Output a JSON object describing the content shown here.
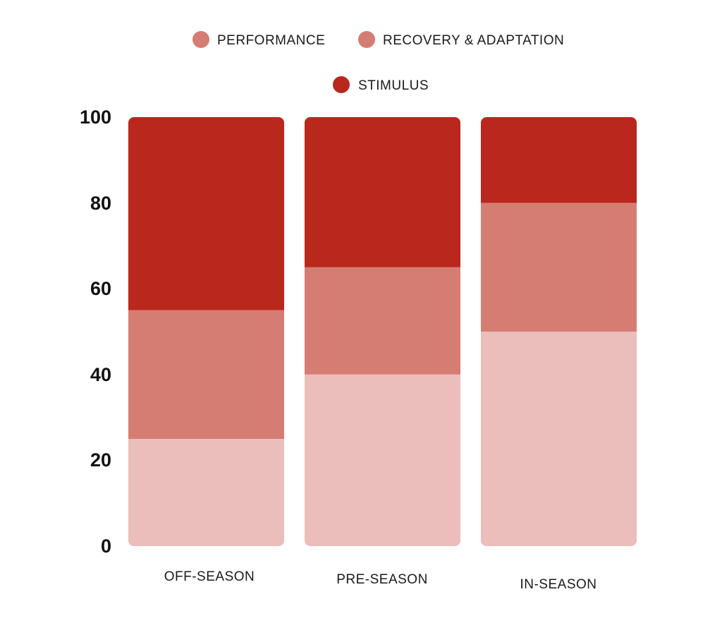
{
  "chart_data": {
    "type": "bar",
    "stacked": true,
    "categories": [
      "OFF-SEASON",
      "PRE-SEASON",
      "IN-SEASON"
    ],
    "series": [
      {
        "name": "PERFORMANCE",
        "values": [
          25,
          40,
          50
        ],
        "color": "#ebbebb"
      },
      {
        "name": "RECOVERY & ADAPTATION",
        "values": [
          30,
          25,
          30
        ],
        "color": "#d67d73"
      },
      {
        "name": "STIMULUS",
        "values": [
          45,
          35,
          20
        ],
        "color": "#b9271d"
      }
    ],
    "legend_colors": [
      "#d67d73",
      "#d67d73",
      "#b9271d"
    ],
    "title": "",
    "xlabel": "",
    "ylabel": "",
    "ylim": [
      0,
      100
    ],
    "yticks": [
      "0",
      "20",
      "40",
      "60",
      "80",
      "100"
    ],
    "grid": false,
    "legend_position": "top"
  }
}
